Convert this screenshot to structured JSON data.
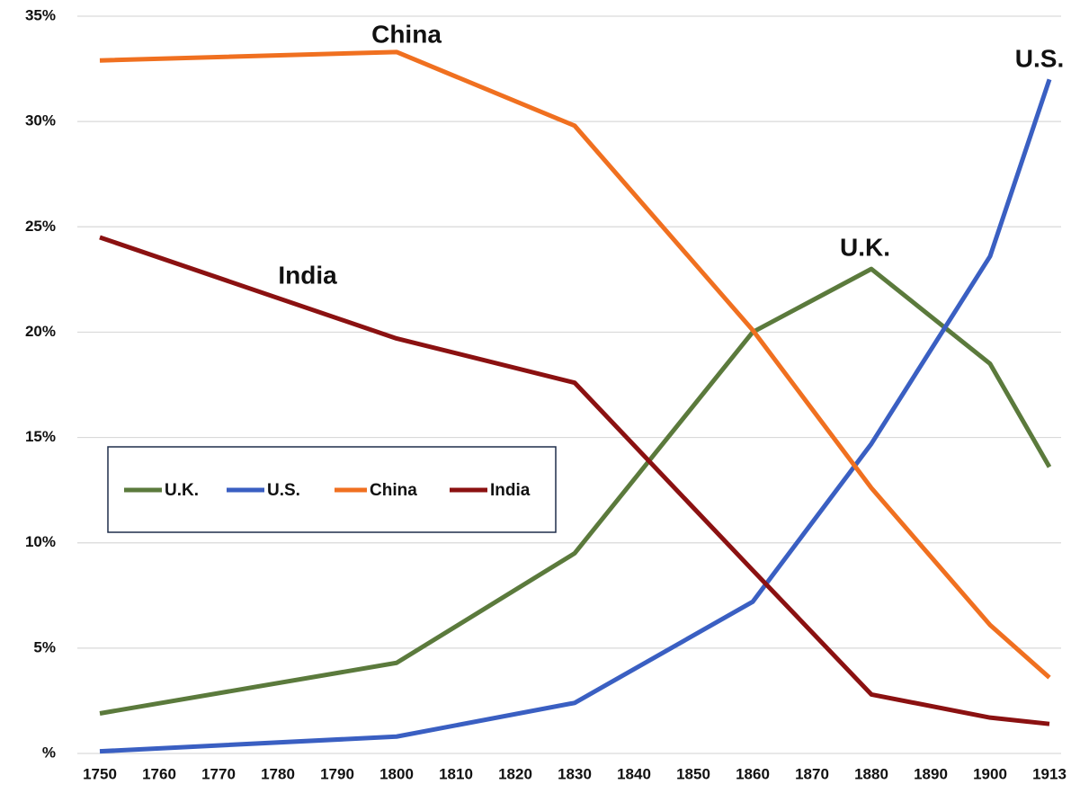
{
  "chart_data": {
    "type": "line",
    "categories": [
      "1750",
      "1760",
      "1770",
      "1780",
      "1790",
      "1800",
      "1810",
      "1820",
      "1830",
      "1840",
      "1850",
      "1860",
      "1870",
      "1880",
      "1890",
      "1900",
      "1913"
    ],
    "x": [
      "1750",
      "1800",
      "1830",
      "1860",
      "1880",
      "1900",
      "1913"
    ],
    "series": [
      {
        "name": "U.K.",
        "color": "#5b7a3c",
        "values": [
          1.9,
          4.3,
          9.5,
          20.0,
          23.0,
          18.5,
          13.6
        ]
      },
      {
        "name": "U.S.",
        "color": "#3a5fc2",
        "values": [
          0.1,
          0.8,
          2.4,
          7.2,
          14.7,
          23.6,
          32.0
        ]
      },
      {
        "name": "China",
        "color": "#f07020",
        "values": [
          32.9,
          33.3,
          29.8,
          20.1,
          12.6,
          6.1,
          3.6
        ]
      },
      {
        "name": "India",
        "color": "#8b1111",
        "values": [
          24.5,
          19.7,
          17.6,
          8.7,
          2.8,
          1.7,
          1.4
        ]
      }
    ],
    "annotations": [
      "China",
      "India",
      "U.K.",
      "U.S."
    ],
    "ylim": [
      0,
      35
    ],
    "yticks": [
      {
        "value": 0,
        "label": "%"
      },
      {
        "value": 5,
        "label": "5%"
      },
      {
        "value": 10,
        "label": "10%"
      },
      {
        "value": 15,
        "label": "15%"
      },
      {
        "value": 20,
        "label": "20%"
      },
      {
        "value": 25,
        "label": "25%"
      },
      {
        "value": 30,
        "label": "30%"
      },
      {
        "value": 35,
        "label": "35%"
      }
    ],
    "grid": true,
    "legend": "inside"
  }
}
